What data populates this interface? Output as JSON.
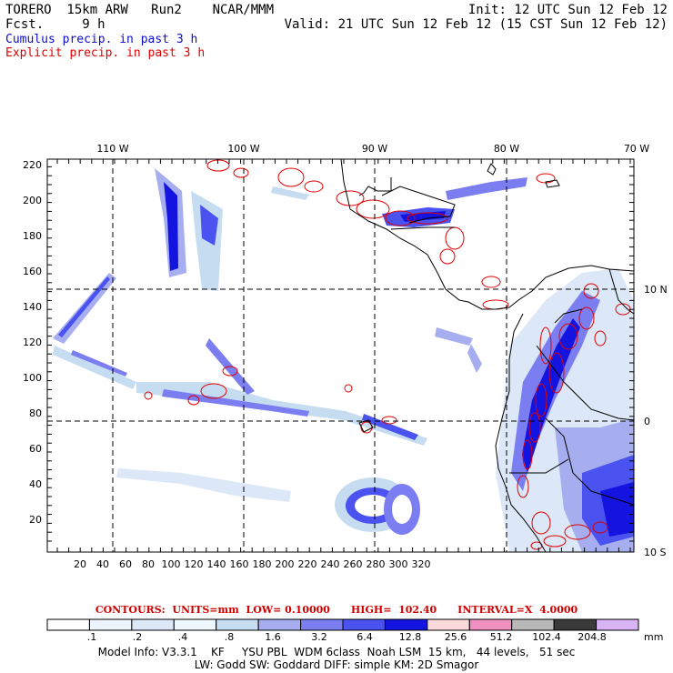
{
  "header": {
    "model_line": "TORERO  15km ARW   Run2    NCAR/MMM",
    "fcst_line": "Fcst.     9 h",
    "init_line": "Init: 12 UTC Sun 12 Feb 12",
    "valid_line": "Valid: 21 UTC Sun 12 Feb 12 (15 CST Sun 12 Feb 12)",
    "cumulus_label": "Cumulus precip. in past 3 h",
    "explicit_label": "Explicit precip. in past 3 h"
  },
  "colors": {
    "cumulus": "#0b0bd0",
    "explicit": "#e00000",
    "coast": "#000000",
    "grid": "#000000"
  },
  "map": {
    "lon_labels": [
      "110 W",
      "100 W",
      "90 W",
      "80 W",
      "70 W"
    ],
    "lat_labels": [
      "10 N",
      "0",
      "10 S"
    ],
    "x_ticks": [
      "20",
      "40",
      "60",
      "80",
      "100",
      "120",
      "140",
      "160",
      "180",
      "200",
      "220",
      "240",
      "260",
      "280",
      "300",
      "320"
    ],
    "y_ticks": [
      "20",
      "40",
      "60",
      "80",
      "100",
      "120",
      "140",
      "160",
      "180",
      "200",
      "220"
    ]
  },
  "contours": {
    "text": "CONTOURS:  UNITS=mm  LOW= 0.10000      HIGH=  102.40      INTERVAL=X  4.0000"
  },
  "colorbar": {
    "unit": "mm",
    "labels": [
      ".1",
      ".2",
      ".4",
      ".8",
      "1.6",
      "3.2",
      "6.4",
      "12.8",
      "25.6",
      "51.2",
      "102.4",
      "204.8"
    ],
    "colors": [
      "#ffffff",
      "#eef4fb",
      "#dce8f7",
      "#eef8fc",
      "#c6dcf0",
      "#a6aef0",
      "#7b7ef0",
      "#4a52f0",
      "#1414e0",
      "#fadada",
      "#f090c0",
      "#b8b8b8",
      "#3a3a3a",
      "#d8b4f4"
    ]
  },
  "footer": {
    "line1": "Model Info: V3.3.1    KF     YSU PBL  WDM 6class  Noah LSM  15 km,   44 levels,   51 sec",
    "line2": "LW: Godd SW: Goddard DIFF: simple KM: 2D Smagor"
  }
}
